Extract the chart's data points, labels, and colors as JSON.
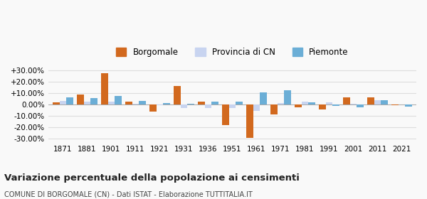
{
  "years": [
    1871,
    1881,
    1901,
    1911,
    1921,
    1931,
    1936,
    1951,
    1961,
    1971,
    1981,
    1991,
    2001,
    2011,
    2021
  ],
  "borgomale": [
    1.5,
    8.5,
    27.5,
    2.5,
    -6.5,
    16.0,
    2.5,
    -18.5,
    -29.5,
    -9.0,
    -2.5,
    -4.5,
    6.0,
    6.0,
    -1.0
  ],
  "provincia_cn": [
    3.0,
    2.5,
    2.5,
    0.5,
    -0.5,
    -3.0,
    -3.5,
    -3.0,
    -5.5,
    1.0,
    2.0,
    1.5,
    0.5,
    3.5,
    0.0
  ],
  "piemonte": [
    6.0,
    5.5,
    7.0,
    3.0,
    1.0,
    0.5,
    2.5,
    2.5,
    10.5,
    12.5,
    1.5,
    -1.5,
    -2.5,
    3.5,
    -2.0
  ],
  "color_borgomale": "#d2691e",
  "color_provincia": "#c8d4f0",
  "color_piemonte": "#6baed6",
  "ylim": [
    -33,
    33
  ],
  "yticks": [
    -30,
    -20,
    -10,
    0,
    10,
    20,
    30
  ],
  "ytick_labels": [
    "-30.00%",
    "-20.00%",
    "-10.00%",
    "0.00%",
    "+10.00%",
    "+20.00%",
    "+30.00%"
  ],
  "title": "Variazione percentuale della popolazione ai censimenti",
  "subtitle": "COMUNE DI BORGOMALE (CN) - Dati ISTAT - Elaborazione TUTTITALIA.IT",
  "legend_labels": [
    "Borgomale",
    "Provincia di CN",
    "Piemonte"
  ],
  "background_color": "#f9f9f9",
  "grid_color": "#dddddd"
}
